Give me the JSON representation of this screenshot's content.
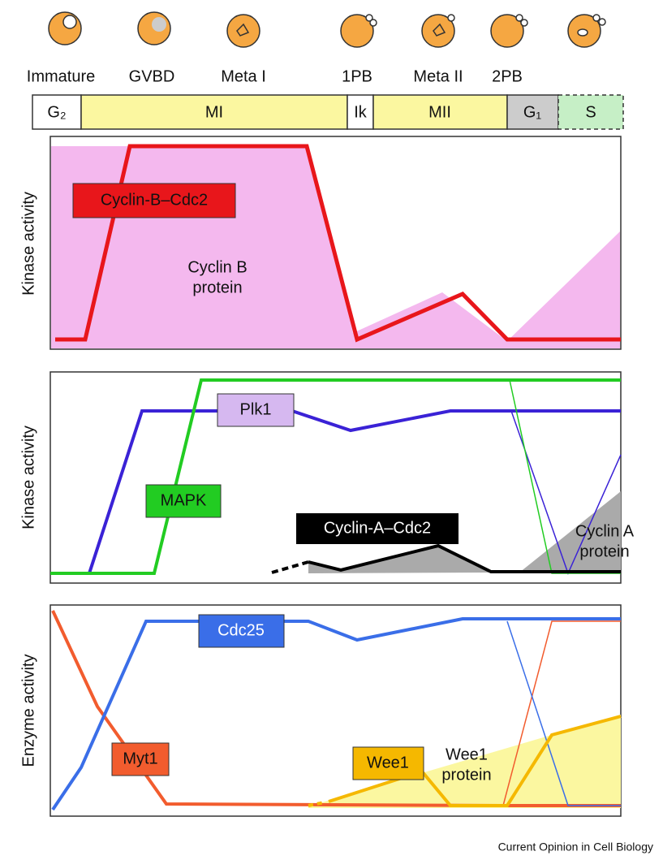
{
  "stages": [
    "Immature",
    "GVBD",
    "Meta I",
    "1PB",
    "Meta II",
    "2PB"
  ],
  "phases": [
    "G₂",
    "MI",
    "Ik",
    "MII",
    "G₁",
    "S"
  ],
  "panels": [
    {
      "y_label": "Kinase activity",
      "labels": [
        "Cyclin-B–Cdc2",
        "Cyclin B",
        "protein"
      ]
    },
    {
      "y_label": "Kinase activity",
      "labels": [
        "Plk1",
        "MAPK",
        "Cyclin-A–Cdc2",
        "Cyclin A",
        "protein"
      ]
    },
    {
      "y_label": "Enzyme activity",
      "labels": [
        "Cdc25",
        "Myt1",
        "Wee1",
        "Wee1",
        "protein"
      ]
    }
  ],
  "footer": "Current Opinion in Cell Biology"
}
